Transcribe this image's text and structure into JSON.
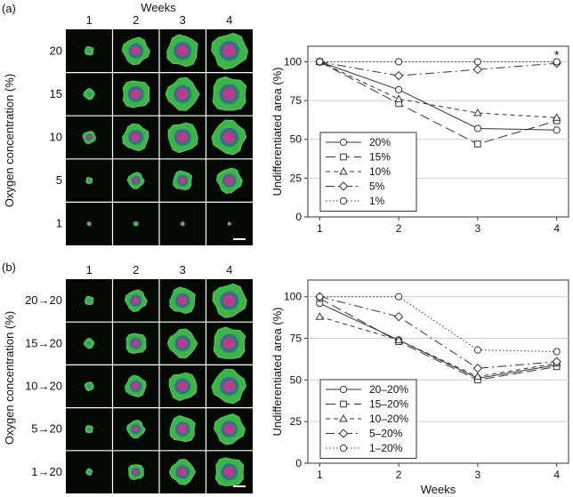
{
  "panel_a": {
    "label": "(a)",
    "grid_title": "Weeks",
    "grid_ylabel": "Oxygen concentration (%)",
    "col_labels": [
      "1",
      "2",
      "3",
      "4"
    ],
    "row_labels": [
      "20",
      "15",
      "10",
      "5",
      "1"
    ],
    "colony_scale": [
      [
        0.25,
        0.75,
        0.9,
        1.0
      ],
      [
        0.3,
        0.8,
        0.9,
        1.0
      ],
      [
        0.35,
        0.75,
        0.85,
        0.95
      ],
      [
        0.18,
        0.45,
        0.55,
        0.7
      ],
      [
        0.1,
        0.12,
        0.1,
        0.08
      ]
    ]
  },
  "panel_b": {
    "label": "(b)",
    "grid_ylabel": "Oxygen concentration (%)",
    "col_labels": [
      "1",
      "2",
      "3",
      "4"
    ],
    "row_labels": [
      "20→20",
      "15→20",
      "10→20",
      "5→20",
      "1→20"
    ],
    "colony_scale": [
      [
        0.25,
        0.6,
        0.75,
        0.95
      ],
      [
        0.28,
        0.6,
        0.8,
        0.95
      ],
      [
        0.25,
        0.6,
        0.8,
        0.95
      ],
      [
        0.22,
        0.5,
        0.75,
        0.85
      ],
      [
        0.18,
        0.45,
        0.7,
        0.85
      ]
    ]
  },
  "chart_data": [
    {
      "type": "line",
      "xlabel": "",
      "ylabel": "Undifferentiated area (%)",
      "x": [
        1,
        2,
        3,
        4
      ],
      "xlim": [
        0.85,
        4.15
      ],
      "ylim": [
        0,
        110
      ],
      "yticks": [
        0,
        25,
        50,
        75,
        100
      ],
      "grid": "horizontal",
      "legend": "bottom-left",
      "annotations": [
        {
          "text": "*",
          "x": 4,
          "y": 104
        }
      ],
      "series": [
        {
          "name": "20%",
          "values": [
            100,
            82,
            57,
            56
          ],
          "dash": "",
          "marker": "circle"
        },
        {
          "name": "15%",
          "values": [
            100,
            73,
            47,
            62
          ],
          "dash": "11 5",
          "marker": "square"
        },
        {
          "name": "10%",
          "values": [
            100,
            76,
            67,
            64
          ],
          "dash": "5 4",
          "marker": "triangle"
        },
        {
          "name": "5%",
          "values": [
            100,
            91,
            95,
            99
          ],
          "dash": "10 4 2 4",
          "marker": "diamond"
        },
        {
          "name": "1%",
          "values": [
            100,
            100,
            100,
            100
          ],
          "dash": "1.5 2.5",
          "marker": "circle"
        }
      ]
    },
    {
      "type": "line",
      "xlabel": "Weeks",
      "ylabel": "Undifferentiated area (%)",
      "x": [
        1,
        2,
        3,
        4
      ],
      "xlim": [
        0.85,
        4.15
      ],
      "ylim": [
        0,
        110
      ],
      "yticks": [
        0,
        25,
        50,
        75,
        100
      ],
      "grid": "horizontal",
      "legend": "bottom-left",
      "series": [
        {
          "name": "20–20%",
          "values": [
            96,
            74,
            51,
            59
          ],
          "dash": "",
          "marker": "circle"
        },
        {
          "name": "15–20%",
          "values": [
            99,
            73,
            50,
            58
          ],
          "dash": "11 5",
          "marker": "square"
        },
        {
          "name": "10–20%",
          "values": [
            88,
            74,
            52,
            60
          ],
          "dash": "5 4",
          "marker": "triangle"
        },
        {
          "name": "5–20%",
          "values": [
            100,
            88,
            57,
            61
          ],
          "dash": "10 4 2 4",
          "marker": "diamond"
        },
        {
          "name": "1–20%",
          "values": [
            100,
            100,
            68,
            67
          ],
          "dash": "1.5 2.5",
          "marker": "circle"
        }
      ]
    }
  ]
}
